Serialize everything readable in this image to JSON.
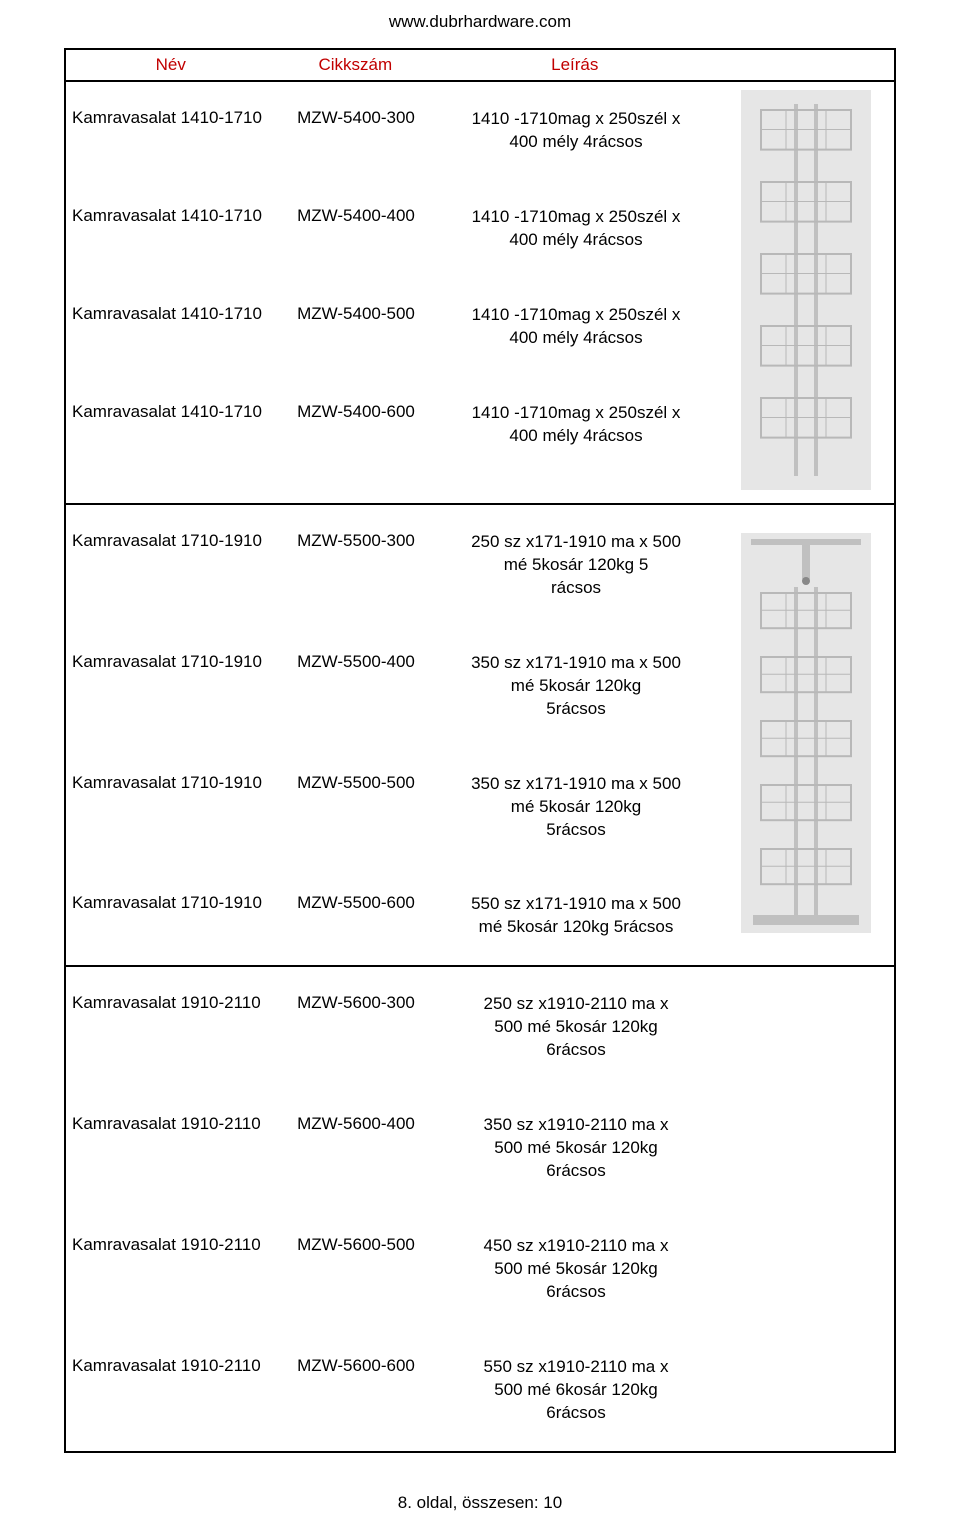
{
  "site_url": "www.dubrhardware.com",
  "headers": {
    "name": "Név",
    "sku": "Cikkszám",
    "desc": "Leírás"
  },
  "header_color": "#c10000",
  "groups": [
    {
      "image": "shelf4",
      "rows": [
        {
          "name": "Kamravasalat 1410-1710",
          "sku": "MZW-5400-300",
          "desc": "1410 -1710mag x 250szél x\n400 mély          4rácsos"
        },
        {
          "name": "Kamravasalat 1410-1710",
          "sku": "MZW-5400-400",
          "desc": "1410 -1710mag x 250szél x\n400 mély          4rácsos"
        },
        {
          "name": "Kamravasalat 1410-1710",
          "sku": "MZW-5400-500",
          "desc": "1410 -1710mag x 250szél x\n400 mély          4rácsos"
        },
        {
          "name": "Kamravasalat 1410-1710",
          "sku": "MZW-5400-600",
          "desc": "1410 -1710mag x 250szél x\n400 mély          4rácsos"
        }
      ]
    },
    {
      "image": "shelf5",
      "rows": [
        {
          "name": "Kamravasalat 1710-1910",
          "sku": "MZW-5500-300",
          "desc": "250 sz x171-1910 ma x 500\nmé 5kosár 120kg        5\nrácsos"
        },
        {
          "name": "Kamravasalat 1710-1910",
          "sku": "MZW-5500-400",
          "desc": "350 sz x171-1910 ma x 500\nmé 5kosár 120kg\n5rácsos"
        },
        {
          "name": "Kamravasalat 1710-1910",
          "sku": "MZW-5500-500",
          "desc": "350 sz x171-1910 ma x 500\nmé 5kosár 120kg\n5rácsos"
        },
        {
          "name": "Kamravasalat 1710-1910",
          "sku": "MZW-5500-600",
          "desc": "550 sz x171-1910 ma x 500\nmé 5kosár 120kg    5rácsos"
        }
      ]
    },
    {
      "image": "none",
      "rows": [
        {
          "name": "Kamravasalat 1910-2110",
          "sku": "MZW-5600-300",
          "desc": "250 sz x1910-2110 ma x\n500 mé 5kosár 120kg\n6rácsos"
        },
        {
          "name": "Kamravasalat 1910-2110",
          "sku": "MZW-5600-400",
          "desc": "350 sz x1910-2110 ma x\n500 mé 5kosár 120kg\n6rácsos"
        },
        {
          "name": "Kamravasalat 1910-2110",
          "sku": "MZW-5600-500",
          "desc": "450 sz x1910-2110 ma x\n500 mé 5kosár 120kg\n6rácsos"
        },
        {
          "name": "Kamravasalat 1910-2110",
          "sku": "MZW-5600-600",
          "desc": "550 sz x1910-2110 ma x\n500 mé 6kosár 120kg\n6rácsos"
        }
      ]
    }
  ],
  "image_style": {
    "frame_color": "#c0c0c0",
    "basket_color": "#b8b8b8",
    "bg_color": "#e6e6e6"
  },
  "footer": "8. oldal, összesen: 10"
}
